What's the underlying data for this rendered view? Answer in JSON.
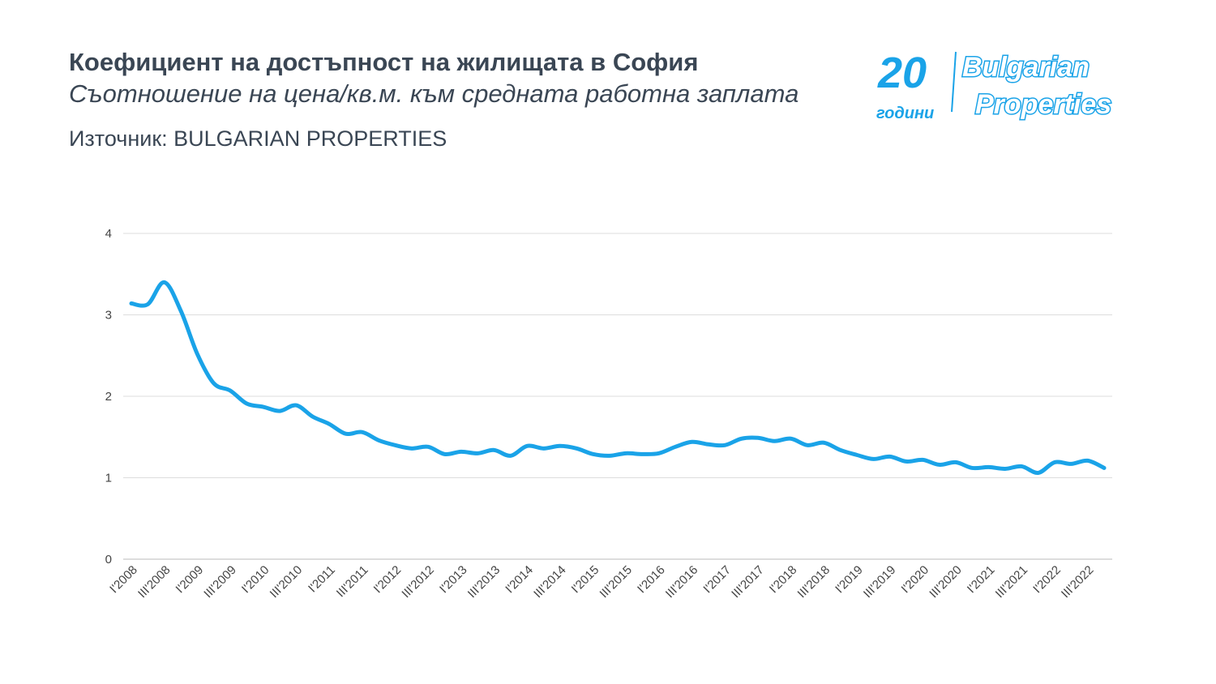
{
  "header": {
    "title": "Коефициент на достъпност на жилищата в София",
    "subtitle": "Съотношение на цена/кв.м. към средната работна заплата",
    "source": "Източник: BULGARIAN PROPERTIES"
  },
  "logo": {
    "number": "20",
    "caption": "години",
    "line1": "Bulgarian",
    "line2": "Properties",
    "color": "#1aa3e8"
  },
  "chart_data": {
    "type": "line",
    "title": "Коефициент на достъпност на жилищата в София",
    "xlabel": "",
    "ylabel": "",
    "ylim": [
      0,
      4
    ],
    "yticks": [
      0,
      1,
      2,
      3,
      4
    ],
    "grid": true,
    "line_color": "#1aa3e8",
    "categories": [
      "I'2008",
      "II'2008",
      "III'2008",
      "IV'2008",
      "I'2009",
      "II'2009",
      "III'2009",
      "IV'2009",
      "I'2010",
      "II'2010",
      "III'2010",
      "IV'2010",
      "I'2011",
      "II'2011",
      "III'2011",
      "IV'2011",
      "I'2012",
      "II'2012",
      "III'2012",
      "IV'2012",
      "I'2013",
      "II'2013",
      "III'2013",
      "IV'2013",
      "I'2014",
      "II'2014",
      "III'2014",
      "IV'2014",
      "I'2015",
      "II'2015",
      "III'2015",
      "IV'2015",
      "I'2016",
      "II'2016",
      "III'2016",
      "IV'2016",
      "I'2017",
      "II'2017",
      "III'2017",
      "IV'2017",
      "I'2018",
      "II'2018",
      "III'2018",
      "IV'2018",
      "I'2019",
      "II'2019",
      "III'2019",
      "IV'2019",
      "I'2020",
      "II'2020",
      "III'2020",
      "IV'2020",
      "I'2021",
      "II'2021",
      "III'2021",
      "IV'2021",
      "I'2022",
      "II'2022",
      "III'2022",
      "IV'2022"
    ],
    "xtick_labels": [
      "I'2008",
      "III'2008",
      "I'2009",
      "III'2009",
      "I'2010",
      "III'2010",
      "I'2011",
      "III'2011",
      "I'2012",
      "III'2012",
      "I'2013",
      "III'2013",
      "I'2014",
      "III'2014",
      "I'2015",
      "III'2015",
      "I'2016",
      "III'2016",
      "I'2017",
      "III'2017",
      "I'2018",
      "III'2018",
      "I'2019",
      "III'2019",
      "I'2020",
      "III'2020",
      "I'2021",
      "III'2021",
      "I'2022",
      "III'2022"
    ],
    "values": [
      3.14,
      3.13,
      3.4,
      3.05,
      2.52,
      2.16,
      2.07,
      1.91,
      1.87,
      1.82,
      1.89,
      1.75,
      1.66,
      1.54,
      1.56,
      1.46,
      1.4,
      1.36,
      1.38,
      1.29,
      1.32,
      1.3,
      1.34,
      1.27,
      1.39,
      1.36,
      1.39,
      1.36,
      1.29,
      1.27,
      1.3,
      1.29,
      1.3,
      1.38,
      1.44,
      1.41,
      1.4,
      1.48,
      1.49,
      1.45,
      1.48,
      1.4,
      1.43,
      1.34,
      1.28,
      1.23,
      1.26,
      1.2,
      1.22,
      1.16,
      1.19,
      1.12,
      1.13,
      1.11,
      1.14,
      1.06,
      1.19,
      1.17,
      1.21,
      1.12
    ]
  }
}
